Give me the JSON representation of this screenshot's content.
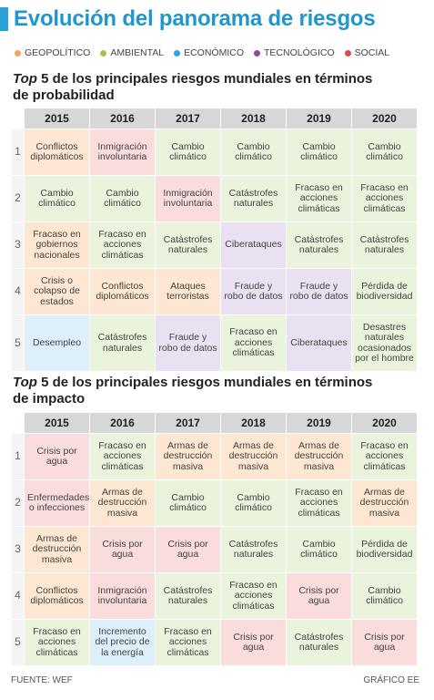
{
  "title": "Evolución del panorama de riesgos",
  "legend": [
    {
      "label": "GEOPOLÍTICO",
      "color": "#f5a55c",
      "cls": "c-geo"
    },
    {
      "label": "AMBIENTAL",
      "color": "#9cc653",
      "cls": "c-amb"
    },
    {
      "label": "ECONÓMICO",
      "color": "#2ba5dc",
      "cls": "c-eco"
    },
    {
      "label": "TECNOLÓGICO",
      "color": "#8d4a9e",
      "cls": "c-tec"
    },
    {
      "label": "SOCIAL",
      "color": "#e8474a",
      "cls": "c-soc"
    }
  ],
  "chart_data": [
    {
      "type": "table",
      "title_italic": "Top",
      "title_rest": " 5 de los principales riesgos mundiales en términos",
      "title_line2": "de probabilidad",
      "years": [
        "2015",
        "2016",
        "2017",
        "2018",
        "2019",
        "2020"
      ],
      "ranks": [
        "1",
        "2",
        "3",
        "4",
        "5"
      ],
      "rows": [
        [
          {
            "text": "Conflictos diplomáticos",
            "cat": "c-geo"
          },
          {
            "text": "Inmigración involuntaria",
            "cat": "c-soc"
          },
          {
            "text": "Cambio climático",
            "cat": "c-amb"
          },
          {
            "text": "Cambio climático",
            "cat": "c-amb"
          },
          {
            "text": "Cambio climático",
            "cat": "c-amb"
          },
          {
            "text": "Cambio climático",
            "cat": "c-amb"
          }
        ],
        [
          {
            "text": "Cambio climático",
            "cat": "c-amb"
          },
          {
            "text": "Cambio climático",
            "cat": "c-amb"
          },
          {
            "text": "Inmigración involuntaria",
            "cat": "c-soc"
          },
          {
            "text": "Catástrofes naturales",
            "cat": "c-amb"
          },
          {
            "text": "Fracaso en acciones climáticas",
            "cat": "c-amb"
          },
          {
            "text": "Fracaso en acciones climáticas",
            "cat": "c-amb"
          }
        ],
        [
          {
            "text": "Fracaso en gobiernos nacionales",
            "cat": "c-geo"
          },
          {
            "text": "Fracaso en acciones climáticas",
            "cat": "c-amb"
          },
          {
            "text": "Catástrofes naturales",
            "cat": "c-amb"
          },
          {
            "text": "Ciberataques",
            "cat": "c-tec"
          },
          {
            "text": "Catástrofes naturales",
            "cat": "c-amb"
          },
          {
            "text": "Catástrofes naturales",
            "cat": "c-amb"
          }
        ],
        [
          {
            "text": "Crisis o colapso de estados",
            "cat": "c-geo"
          },
          {
            "text": "Conflictos diplomáticos",
            "cat": "c-geo"
          },
          {
            "text": "Ataques terroristas",
            "cat": "c-geo"
          },
          {
            "text": "Fraude y robo de datos",
            "cat": "c-tec"
          },
          {
            "text": "Fraude y robo de datos",
            "cat": "c-tec"
          },
          {
            "text": "Pérdida de biodiversidad",
            "cat": "c-amb"
          }
        ],
        [
          {
            "text": "Desempleo",
            "cat": "c-eco"
          },
          {
            "text": "Catástrofes naturales",
            "cat": "c-amb"
          },
          {
            "text": "Fraude y robo de datos",
            "cat": "c-tec"
          },
          {
            "text": "Fracaso en acciones climáticas",
            "cat": "c-amb"
          },
          {
            "text": "Ciberataques",
            "cat": "c-tec"
          },
          {
            "text": "Desastres naturales ocasionados por el hombre",
            "cat": "c-amb"
          }
        ]
      ]
    },
    {
      "type": "table",
      "title_italic": "Top",
      "title_rest": " 5 de los principales riesgos mundiales en términos",
      "title_line2": "de impacto",
      "years": [
        "2015",
        "2016",
        "2017",
        "2018",
        "2019",
        "2020"
      ],
      "ranks": [
        "1",
        "2",
        "3",
        "4",
        "5"
      ],
      "rows": [
        [
          {
            "text": "Crisis por agua",
            "cat": "c-soc"
          },
          {
            "text": "Fracaso en acciones climáticas",
            "cat": "c-amb"
          },
          {
            "text": "Armas de destrucción masiva",
            "cat": "c-geo"
          },
          {
            "text": "Armas de destrucción masiva",
            "cat": "c-geo"
          },
          {
            "text": "Armas de destrucción masiva",
            "cat": "c-geo"
          },
          {
            "text": "Fracaso en acciones climáticas",
            "cat": "c-amb"
          }
        ],
        [
          {
            "text": "Enfermedades o infecciones",
            "cat": "c-soc"
          },
          {
            "text": "Armas de destrucción masiva",
            "cat": "c-geo"
          },
          {
            "text": "Cambio climático",
            "cat": "c-amb"
          },
          {
            "text": "Cambio climático",
            "cat": "c-amb"
          },
          {
            "text": "Fracaso en acciones climáticas",
            "cat": "c-amb"
          },
          {
            "text": "Armas de destrucción masiva",
            "cat": "c-geo"
          }
        ],
        [
          {
            "text": "Armas de destrucción masiva",
            "cat": "c-geo"
          },
          {
            "text": "Crisis por agua",
            "cat": "c-soc"
          },
          {
            "text": "Crisis por agua",
            "cat": "c-soc"
          },
          {
            "text": "Catástrofes naturales",
            "cat": "c-amb"
          },
          {
            "text": "Cambio climático",
            "cat": "c-amb"
          },
          {
            "text": "Pérdida de biodiversidad",
            "cat": "c-amb"
          }
        ],
        [
          {
            "text": "Conflictos diplomáticos",
            "cat": "c-geo"
          },
          {
            "text": "Inmigración involuntaria",
            "cat": "c-soc"
          },
          {
            "text": "Catástrofes naturales",
            "cat": "c-amb"
          },
          {
            "text": "Fracaso en acciones climáticas",
            "cat": "c-amb"
          },
          {
            "text": "Crisis por agua",
            "cat": "c-soc"
          },
          {
            "text": "Cambio climático",
            "cat": "c-amb"
          }
        ],
        [
          {
            "text": "Fracaso en acciones climáticas",
            "cat": "c-amb"
          },
          {
            "text": "Incremento del precio de la energía",
            "cat": "c-eco"
          },
          {
            "text": "Fracaso en acciones climáticas",
            "cat": "c-amb"
          },
          {
            "text": "Crisis por agua",
            "cat": "c-soc"
          },
          {
            "text": "Catástrofes naturales",
            "cat": "c-amb"
          },
          {
            "text": "Crisis por agua",
            "cat": "c-soc"
          }
        ]
      ]
    }
  ],
  "footer": {
    "source": "FUENTE: WEF",
    "credit": "GRÁFICO EE"
  }
}
